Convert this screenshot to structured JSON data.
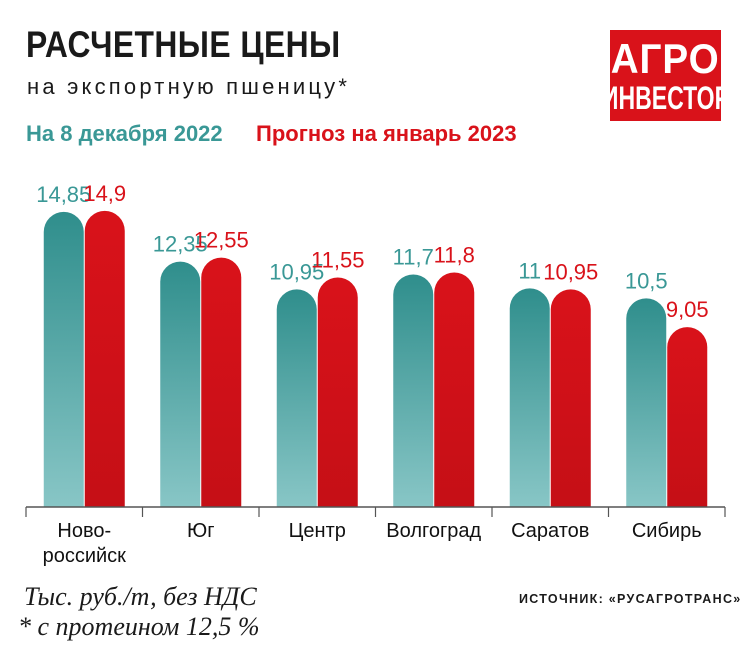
{
  "header": {
    "title": "РАСЧЕТНЫЕ ЦЕНЫ",
    "subtitle": "на экспортную пшеницу*"
  },
  "logo": {
    "line1": "АГРО",
    "line2": "ИНВЕСТОР"
  },
  "colors": {
    "teal": "#3a9896",
    "red": "#d9121a"
  },
  "chart_data": {
    "type": "bar",
    "categories": [
      "Ново-\nроссийск",
      "Юг",
      "Центр",
      "Волгоград",
      "Саратов",
      "Сибирь"
    ],
    "series": [
      {
        "name": "На 8 декабря 2022",
        "values": [
          14.85,
          12.35,
          10.95,
          11.7,
          11,
          10.5
        ],
        "labels": [
          "14,85",
          "12,35",
          "10,95",
          "11,7",
          "11",
          "10,5"
        ]
      },
      {
        "name": "Прогноз на январь 2023",
        "values": [
          14.9,
          12.55,
          11.55,
          11.8,
          10.95,
          9.05
        ],
        "labels": [
          "14,9",
          "12,55",
          "11,55",
          "11,8",
          "10,95",
          "9,05"
        ]
      }
    ],
    "ylim": [
      0,
      15.6
    ],
    "legend": "top-left"
  },
  "footer": {
    "unit": "Тыс. руб./т, без НДС",
    "footnote": "* с протеином 12,5 %",
    "source": "ИСТОЧНИК: «РУСАГРОТРАНС»"
  }
}
